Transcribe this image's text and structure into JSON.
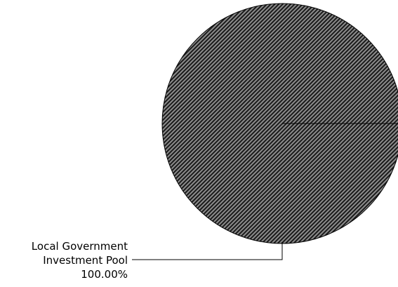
{
  "chart_data": {
    "type": "pie",
    "slices": [
      {
        "label_lines": [
          "Local Government",
          "Investment Pool"
        ],
        "value": 100.0,
        "display_value": "100.00%"
      }
    ],
    "legend": "none",
    "fill_pattern": "diagonal-hatch",
    "colors": {
      "fill_base": "#8c8c8c",
      "hatch": "#1a1a1a",
      "outline": "#000000",
      "text": "#000000"
    }
  }
}
